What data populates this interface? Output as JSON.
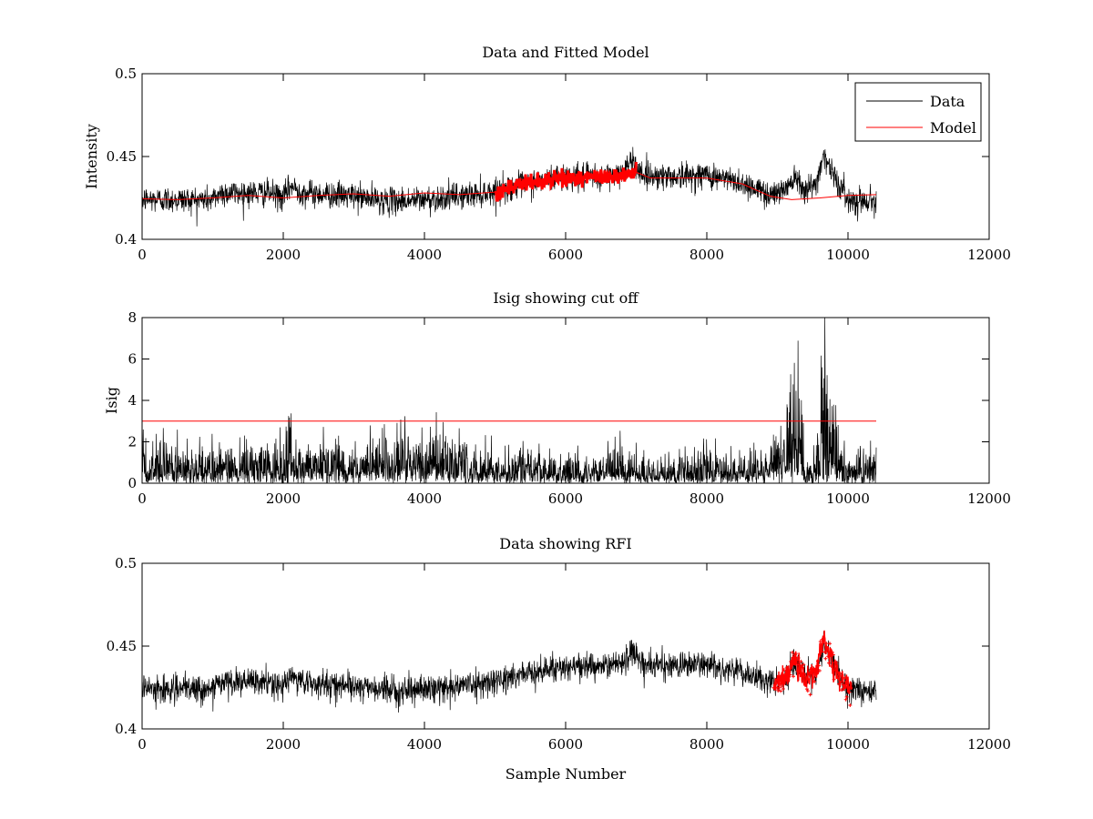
{
  "chart_data": [
    {
      "type": "line",
      "title": "Data and Fitted Model",
      "xlabel": "",
      "ylabel": "Intensity",
      "xlim": [
        0,
        12000
      ],
      "ylim": [
        0.4,
        0.5
      ],
      "xticks": [
        0,
        2000,
        4000,
        6000,
        8000,
        10000,
        12000
      ],
      "yticks": [
        0.4,
        0.45,
        0.5
      ],
      "xtick_labels": [
        "0",
        "2000",
        "4000",
        "6000",
        "8000",
        "10000",
        "12000"
      ],
      "ytick_labels": [
        "0.4",
        "0.45",
        "0.5"
      ],
      "legend": {
        "placement": "top-right",
        "entries": [
          "Data",
          "Model"
        ]
      },
      "series": [
        {
          "name": "Data",
          "color": "#000000",
          "kind": "noisy-line",
          "x_range": [
            0,
            10400
          ],
          "trend": [
            [
              0,
              0.424
            ],
            [
              1000,
              0.424
            ],
            [
              1100,
              0.428
            ],
            [
              1800,
              0.428
            ],
            [
              2000,
              0.425
            ],
            [
              2100,
              0.432
            ],
            [
              2300,
              0.428
            ],
            [
              3000,
              0.426
            ],
            [
              3500,
              0.423
            ],
            [
              4000,
              0.424
            ],
            [
              4500,
              0.426
            ],
            [
              5000,
              0.429
            ],
            [
              5500,
              0.434
            ],
            [
              6000,
              0.438
            ],
            [
              6500,
              0.437
            ],
            [
              6800,
              0.441
            ],
            [
              6950,
              0.447
            ],
            [
              7100,
              0.439
            ],
            [
              7500,
              0.438
            ],
            [
              8000,
              0.439
            ],
            [
              8500,
              0.434
            ],
            [
              8900,
              0.427
            ],
            [
              9100,
              0.43
            ],
            [
              9250,
              0.439
            ],
            [
              9400,
              0.43
            ],
            [
              9550,
              0.433
            ],
            [
              9650,
              0.452
            ],
            [
              9800,
              0.438
            ],
            [
              10000,
              0.424
            ],
            [
              10400,
              0.423
            ]
          ],
          "noise": 0.004
        },
        {
          "name": "Model",
          "color": "#ff0000",
          "kind": "line",
          "points": [
            [
              0,
              0.4245
            ],
            [
              500,
              0.424
            ],
            [
              1000,
              0.425
            ],
            [
              1500,
              0.4265
            ],
            [
              2000,
              0.425
            ],
            [
              2500,
              0.4265
            ],
            [
              3000,
              0.4275
            ],
            [
              3500,
              0.426
            ],
            [
              4000,
              0.428
            ],
            [
              4500,
              0.427
            ],
            [
              5000,
              0.4285
            ],
            [
              5500,
              0.434
            ],
            [
              6000,
              0.437
            ],
            [
              6300,
              0.437
            ],
            [
              6600,
              0.438
            ],
            [
              6800,
              0.439
            ],
            [
              7000,
              0.4405
            ],
            [
              7200,
              0.437
            ],
            [
              7500,
              0.437
            ],
            [
              8000,
              0.437
            ],
            [
              8500,
              0.4335
            ],
            [
              8900,
              0.426
            ],
            [
              9200,
              0.424
            ],
            [
              9600,
              0.425
            ],
            [
              10000,
              0.4265
            ],
            [
              10400,
              0.427
            ]
          ],
          "highlight": {
            "x_range": [
              5000,
              7000
            ],
            "width": 3,
            "noise": 0.0025
          }
        }
      ]
    },
    {
      "type": "line",
      "title": "Isig showing cut off",
      "xlabel": "",
      "ylabel": "Isig",
      "xlim": [
        0,
        12000
      ],
      "ylim": [
        0,
        8
      ],
      "xticks": [
        0,
        2000,
        4000,
        6000,
        8000,
        10000,
        12000
      ],
      "yticks": [
        0,
        2,
        4,
        6,
        8
      ],
      "xtick_labels": [
        "0",
        "2000",
        "4000",
        "6000",
        "8000",
        "10000",
        "12000"
      ],
      "ytick_labels": [
        "0",
        "2",
        "4",
        "6",
        "8"
      ],
      "series": [
        {
          "color": "#000000",
          "kind": "abs-noise",
          "x_range": [
            0,
            10400
          ],
          "envelope": [
            [
              0,
              0.9
            ],
            [
              2000,
              0.9
            ],
            [
              2100,
              1.4
            ],
            [
              2300,
              0.9
            ],
            [
              3500,
              1.1
            ],
            [
              4300,
              1.2
            ],
            [
              5000,
              0.8
            ],
            [
              6000,
              0.7
            ],
            [
              8000,
              0.7
            ],
            [
              8900,
              0.8
            ],
            [
              9100,
              1.5
            ],
            [
              9250,
              3.0
            ],
            [
              9400,
              1.2
            ],
            [
              9500,
              0.5
            ],
            [
              9600,
              2.5
            ],
            [
              9650,
              5.5
            ],
            [
              9700,
              3.5
            ],
            [
              9850,
              1.2
            ],
            [
              10000,
              0.8
            ],
            [
              10400,
              0.8
            ]
          ]
        },
        {
          "color": "#ff0000",
          "kind": "line",
          "points": [
            [
              0,
              3
            ],
            [
              10400,
              3
            ]
          ]
        }
      ]
    },
    {
      "type": "line",
      "title": "Data showing RFI",
      "xlabel": "Sample Number",
      "ylabel": "",
      "xlim": [
        0,
        12000
      ],
      "ylim": [
        0.4,
        0.5
      ],
      "xticks": [
        0,
        2000,
        4000,
        6000,
        8000,
        10000,
        12000
      ],
      "yticks": [
        0.4,
        0.45,
        0.5
      ],
      "xtick_labels": [
        "0",
        "2000",
        "4000",
        "6000",
        "8000",
        "10000",
        "12000"
      ],
      "ytick_labels": [
        "0.4",
        "0.45",
        "0.5"
      ],
      "series": [
        {
          "color": "#000000",
          "kind": "noisy-line",
          "x_range": [
            0,
            10400
          ],
          "trend": [
            [
              0,
              0.424
            ],
            [
              1000,
              0.424
            ],
            [
              1100,
              0.428
            ],
            [
              1800,
              0.428
            ],
            [
              2000,
              0.425
            ],
            [
              2100,
              0.432
            ],
            [
              2300,
              0.428
            ],
            [
              3000,
              0.426
            ],
            [
              3500,
              0.423
            ],
            [
              4000,
              0.424
            ],
            [
              4500,
              0.426
            ],
            [
              5000,
              0.429
            ],
            [
              5500,
              0.434
            ],
            [
              6000,
              0.438
            ],
            [
              6500,
              0.437
            ],
            [
              6800,
              0.441
            ],
            [
              6950,
              0.447
            ],
            [
              7100,
              0.439
            ],
            [
              7500,
              0.438
            ],
            [
              8000,
              0.439
            ],
            [
              8500,
              0.434
            ],
            [
              8900,
              0.427
            ],
            [
              9100,
              0.43
            ],
            [
              9250,
              0.439
            ],
            [
              9400,
              0.43
            ],
            [
              9550,
              0.433
            ],
            [
              9650,
              0.452
            ],
            [
              9800,
              0.438
            ],
            [
              10000,
              0.424
            ],
            [
              10400,
              0.423
            ]
          ],
          "noise": 0.004
        },
        {
          "color": "#ff0000",
          "kind": "noisy-markers",
          "x_range": [
            8950,
            10050
          ],
          "trend": [
            [
              8950,
              0.427
            ],
            [
              9100,
              0.431
            ],
            [
              9250,
              0.44
            ],
            [
              9400,
              0.43
            ],
            [
              9550,
              0.434
            ],
            [
              9650,
              0.455
            ],
            [
              9800,
              0.438
            ],
            [
              9950,
              0.426
            ],
            [
              10050,
              0.426
            ]
          ],
          "noise": 0.004
        }
      ]
    }
  ]
}
